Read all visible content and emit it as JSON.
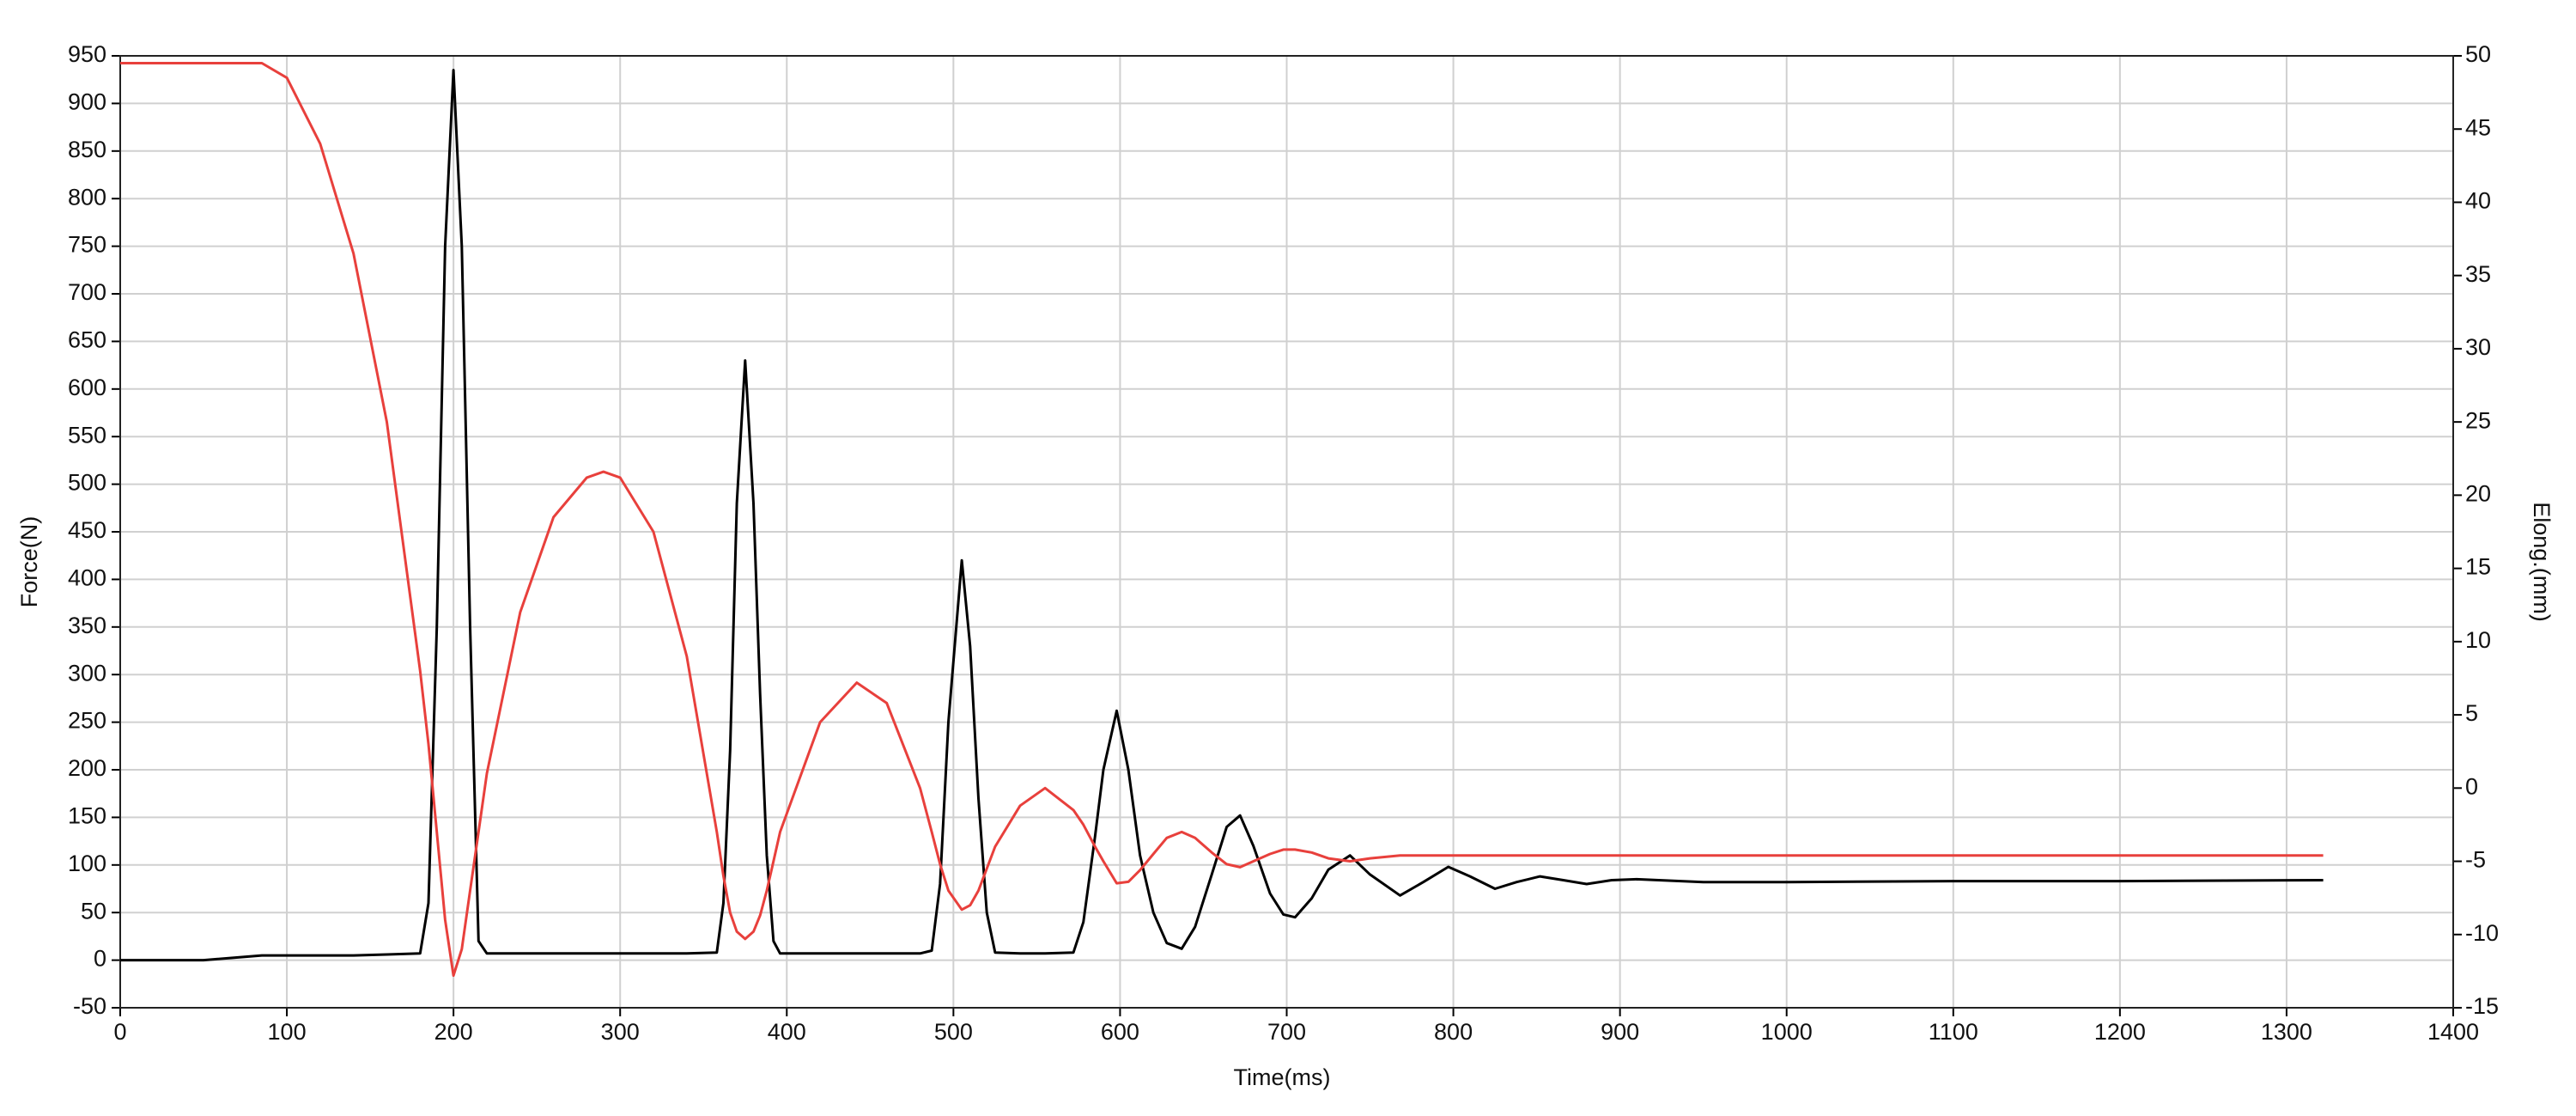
{
  "chart_data": {
    "type": "line",
    "xlabel": "Time(ms)",
    "ylabel": "Force(N)",
    "y2label": "Elong.(mm)",
    "x": [
      0,
      50,
      85,
      100,
      120,
      140,
      160,
      180,
      185,
      190,
      195,
      200,
      205,
      210,
      215,
      220,
      240,
      260,
      280,
      290,
      300,
      320,
      340,
      358,
      362,
      366,
      370,
      375,
      380,
      384,
      388,
      392,
      396,
      420,
      442,
      460,
      480,
      487,
      492,
      497,
      505,
      510,
      515,
      520,
      525,
      540,
      555,
      572,
      578,
      585,
      590,
      598,
      605,
      612,
      620,
      628,
      637,
      645,
      655,
      664,
      672,
      680,
      690,
      698,
      705,
      715,
      725,
      738,
      750,
      768,
      782,
      797,
      810,
      825,
      838,
      852,
      866,
      880,
      895,
      910,
      950,
      1000,
      1100,
      1200,
      1322
    ],
    "series": [
      {
        "name": "Force(N)",
        "color": "#000000",
        "axis": "y",
        "values": [
          0,
          0,
          5,
          5,
          5,
          5,
          6,
          7,
          60,
          350,
          750,
          935,
          750,
          350,
          20,
          7,
          7,
          7,
          7,
          7,
          7,
          7,
          7,
          8,
          60,
          220,
          480,
          630,
          480,
          280,
          110,
          20,
          7,
          7,
          7,
          7,
          7,
          10,
          80,
          250,
          420,
          330,
          170,
          50,
          8,
          7,
          7,
          8,
          40,
          130,
          200,
          262,
          200,
          110,
          50,
          18,
          12,
          35,
          90,
          140,
          152,
          120,
          70,
          48,
          45,
          65,
          95,
          110,
          90,
          68,
          82,
          98,
          88,
          75,
          82,
          88,
          84,
          80,
          84,
          85,
          82,
          82,
          83,
          83,
          84
        ]
      },
      {
        "name": "Elong.(mm)",
        "color": "#e8403c",
        "axis": "y2",
        "values": [
          49.5,
          49.5,
          49.5,
          48.5,
          44,
          36.5,
          25,
          8,
          3,
          -3,
          -9,
          -12.8,
          -11,
          -7,
          -3,
          1,
          12,
          18.5,
          21.2,
          21.6,
          21.2,
          17.5,
          9,
          -3,
          -6,
          -8.5,
          -9.8,
          -10.3,
          -9.8,
          -8.7,
          -7,
          -5,
          -3,
          4.5,
          7.2,
          5.8,
          0,
          -3,
          -5.2,
          -7,
          -8.3,
          -8,
          -7,
          -5.5,
          -4,
          -1.2,
          0,
          -1.5,
          -2.5,
          -4,
          -5,
          -6.5,
          -6.4,
          -5.6,
          -4.5,
          -3.4,
          -3,
          -3.4,
          -4.4,
          -5.2,
          -5.4,
          -5,
          -4.5,
          -4.2,
          -4.2,
          -4.4,
          -4.8,
          -5,
          -4.8,
          -4.6,
          -4.6,
          -4.6,
          -4.6,
          -4.6,
          -4.6,
          -4.6,
          -4.6,
          -4.6,
          -4.6,
          -4.6,
          -4.6,
          -4.6,
          -4.6,
          -4.6,
          -4.6
        ]
      }
    ],
    "xlim": [
      0,
      1400
    ],
    "xticks": [
      0,
      100,
      200,
      300,
      400,
      500,
      600,
      700,
      800,
      900,
      1000,
      1100,
      1200,
      1300,
      1400
    ],
    "ylim": [
      -50,
      950
    ],
    "yticks": [
      -50,
      0,
      50,
      100,
      150,
      200,
      250,
      300,
      350,
      400,
      450,
      500,
      550,
      600,
      650,
      700,
      750,
      800,
      850,
      900,
      950
    ],
    "y2lim": [
      -15,
      50
    ],
    "y2ticks": [
      -15,
      -10,
      -5,
      0,
      5,
      10,
      15,
      20,
      25,
      30,
      35,
      40,
      45,
      50
    ],
    "grid": true
  }
}
